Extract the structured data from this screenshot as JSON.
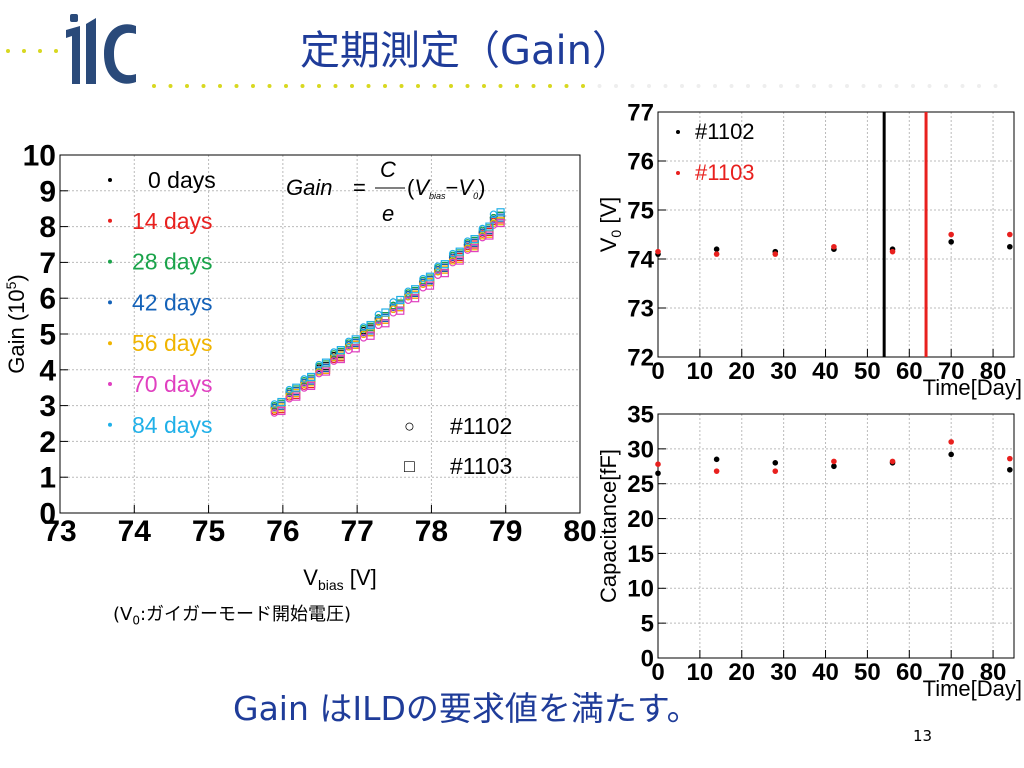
{
  "slide": {
    "title": "定期測定（Gain）",
    "footer": "Gain はILDの要求値を満たす。",
    "page_number": "13",
    "logo_text": "ilc",
    "note": "(V0:ガイガーモード開始電圧)",
    "note_parts": {
      "open": "(V",
      "sub": "0",
      "rest": ":ガイガーモード開始電圧)"
    },
    "colors": {
      "accent": "#1f3c99",
      "logo": "#2a4a7a",
      "dots": "#d8d820"
    }
  },
  "chart_data": [
    {
      "id": "gain",
      "type": "scatter",
      "title": "",
      "xlabel": {
        "main": "V",
        "sub": "bias",
        "rest": " [V]"
      },
      "ylabel": {
        "main": "Gain (10",
        "sup": "5",
        "rest": ")"
      },
      "xlim": [
        73,
        80
      ],
      "ylim": [
        0,
        10
      ],
      "xticks": [
        "73",
        "74",
        "75",
        "76",
        "77",
        "78",
        "79",
        "80"
      ],
      "yticks": [
        "0",
        "1",
        "2",
        "3",
        "4",
        "5",
        "6",
        "7",
        "8",
        "9",
        "10"
      ],
      "grid": true,
      "formula": {
        "lhs": "Gain",
        "eq": "=",
        "num": "C",
        "den": "e",
        "paren_open": "(",
        "v1": "V",
        "v1sub": "bias",
        "minus": "−",
        "v2": "V",
        "v2sub": "0",
        "paren_close": ")"
      },
      "legend_days": [
        {
          "label": "0 days",
          "color": "#000000"
        },
        {
          "label": "14 days",
          "color": "#e8201e"
        },
        {
          "label": "28 days",
          "color": "#1aa34a"
        },
        {
          "label": "42 days",
          "color": "#1462b8"
        },
        {
          "label": "56 days",
          "color": "#f0b400"
        },
        {
          "label": "70 days",
          "color": "#e040c0"
        },
        {
          "label": "84 days",
          "color": "#20b0e8"
        }
      ],
      "legend_markers": [
        {
          "symbol": "○",
          "label": "#1102"
        },
        {
          "symbol": "□",
          "label": "#1103"
        }
      ],
      "x": [
        75.9,
        76.1,
        76.3,
        76.5,
        76.7,
        76.9,
        77.1,
        77.3,
        77.5,
        77.7,
        77.9,
        78.1,
        78.3,
        78.5,
        78.7,
        78.85
      ],
      "series": [
        {
          "name": "0 days",
          "values": [
            3.0,
            3.4,
            3.7,
            4.1,
            4.45,
            4.75,
            5.15,
            5.5,
            5.85,
            6.15,
            6.5,
            6.85,
            7.2,
            7.55,
            7.9,
            8.3
          ]
        },
        {
          "name": "14 days",
          "values": [
            2.9,
            3.3,
            3.6,
            4.0,
            4.35,
            4.7,
            5.05,
            5.4,
            5.75,
            6.1,
            6.45,
            6.8,
            7.15,
            7.5,
            7.85,
            8.2
          ]
        },
        {
          "name": "28 days",
          "values": [
            3.05,
            3.45,
            3.75,
            4.15,
            4.5,
            4.8,
            5.2,
            5.5,
            5.85,
            6.2,
            6.55,
            6.9,
            7.25,
            7.6,
            7.95,
            8.3
          ]
        },
        {
          "name": "42 days",
          "values": [
            3.0,
            3.4,
            3.7,
            4.05,
            4.4,
            4.75,
            5.1,
            5.45,
            5.8,
            6.15,
            6.5,
            6.85,
            7.2,
            7.55,
            7.9,
            8.25
          ]
        },
        {
          "name": "56 days",
          "values": [
            2.95,
            3.35,
            3.65,
            4.0,
            4.4,
            4.7,
            5.05,
            5.4,
            5.75,
            6.1,
            6.45,
            6.8,
            7.1,
            7.45,
            7.8,
            8.15
          ]
        },
        {
          "name": "70 days",
          "values": [
            2.85,
            3.25,
            3.55,
            3.95,
            4.3,
            4.6,
            4.95,
            5.3,
            5.65,
            6.0,
            6.35,
            6.7,
            7.05,
            7.4,
            7.75,
            8.1
          ]
        },
        {
          "name": "84 days",
          "values": [
            3.1,
            3.5,
            3.8,
            4.2,
            4.55,
            4.85,
            5.25,
            5.6,
            5.95,
            6.25,
            6.6,
            6.95,
            7.3,
            7.65,
            8.0,
            8.4
          ]
        }
      ]
    },
    {
      "id": "v0",
      "type": "scatter",
      "title": "",
      "xlabel": "Time[Day]",
      "ylabel": {
        "main": "V",
        "sub": "0",
        "rest": " [V]"
      },
      "xlim": [
        0,
        85
      ],
      "ylim": [
        72,
        77
      ],
      "xticks": [
        "0",
        "10",
        "20",
        "30",
        "40",
        "50",
        "60",
        "70",
        "80"
      ],
      "yticks": [
        "72",
        "73",
        "74",
        "75",
        "76",
        "77"
      ],
      "grid": true,
      "legend": [
        {
          "label": "#1102",
          "color": "#000000"
        },
        {
          "label": "#1103",
          "color": "#e8201e"
        }
      ],
      "vlines": [
        {
          "x": 54,
          "color": "#000000"
        },
        {
          "x": 64,
          "color": "#e8201e"
        }
      ],
      "series": [
        {
          "name": "#1102",
          "x": [
            0,
            14,
            28,
            42,
            56,
            70,
            84
          ],
          "values": [
            74.1,
            74.2,
            74.15,
            74.2,
            74.2,
            74.35,
            74.25
          ]
        },
        {
          "name": "#1103",
          "x": [
            0,
            14,
            28,
            42,
            56,
            70,
            84
          ],
          "values": [
            74.15,
            74.1,
            74.1,
            74.25,
            74.15,
            74.5,
            74.5
          ]
        }
      ]
    },
    {
      "id": "cap",
      "type": "scatter",
      "title": "",
      "xlabel": "Time[Day]",
      "ylabel": "Capacitance[fF]",
      "xlim": [
        0,
        85
      ],
      "ylim": [
        0,
        35
      ],
      "xticks": [
        "0",
        "10",
        "20",
        "30",
        "40",
        "50",
        "60",
        "70",
        "80"
      ],
      "yticks": [
        "0",
        "5",
        "10",
        "15",
        "20",
        "25",
        "30",
        "35"
      ],
      "grid": true,
      "series": [
        {
          "name": "#1102",
          "x": [
            0,
            14,
            28,
            42,
            56,
            70,
            84
          ],
          "values": [
            26.5,
            28.5,
            28.0,
            27.5,
            28.0,
            29.2,
            27.0
          ]
        },
        {
          "name": "#1103",
          "x": [
            0,
            14,
            28,
            42,
            56,
            70,
            84
          ],
          "values": [
            27.8,
            26.8,
            26.8,
            28.2,
            28.2,
            31.0,
            28.6
          ]
        }
      ]
    }
  ]
}
